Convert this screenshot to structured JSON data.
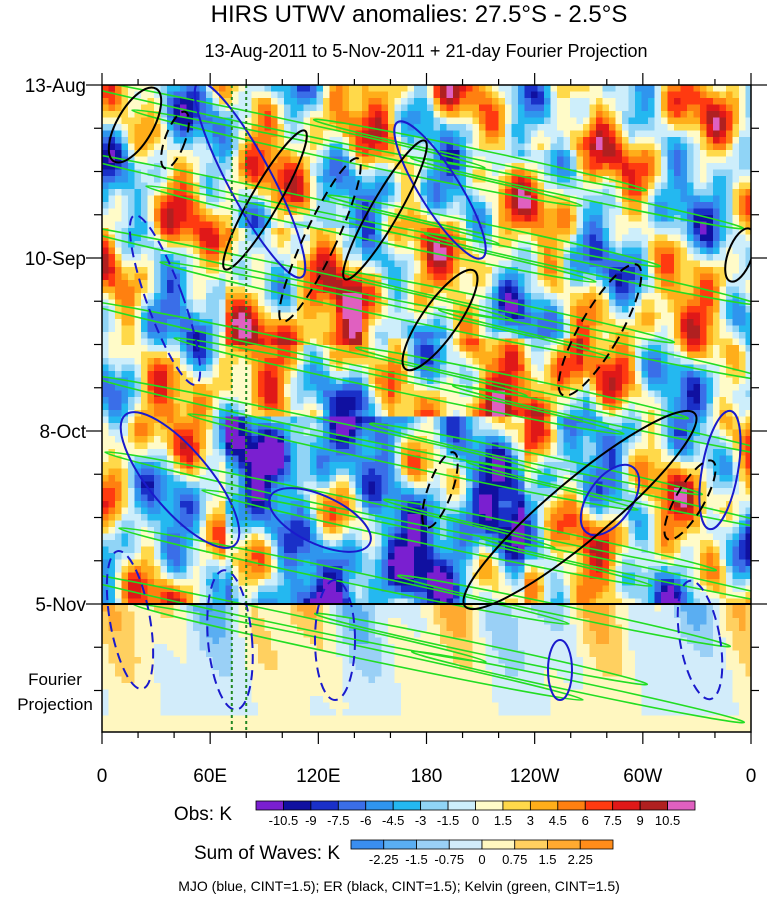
{
  "chart_data": {
    "type": "heatmap",
    "title": "HIRS UTWV anomalies: 27.5°S - 2.5°S",
    "subtitle": "13-Aug-2011 to 5-Nov-2011 + 21-day Fourier Projection",
    "xlabel": "",
    "ylabel": "",
    "x_tick_labels": [
      "0",
      "60E",
      "120E",
      "180",
      "120W",
      "60W",
      "0"
    ],
    "x_range_deg": [
      0,
      360
    ],
    "y_tick_labels": [
      "13-Aug",
      "10-Sep",
      "8-Oct",
      "5-Nov"
    ],
    "y_range_days": [
      0,
      105
    ],
    "projection_label_line1": "Fourier",
    "projection_label_line2": "Projection",
    "obs_label": "Obs: K",
    "obs_levels": [
      "-10.5",
      "-9",
      "-7.5",
      "-6",
      "-4.5",
      "-3",
      "-1.5",
      "0",
      "1.5",
      "3",
      "4.5",
      "6",
      "7.5",
      "9",
      "10.5"
    ],
    "obs_colors": [
      "#7a1fd0",
      "#1010a0",
      "#1a30c8",
      "#3a6ee8",
      "#2f95ee",
      "#24b8f0",
      "#90d4f6",
      "#cdeefb",
      "#fffbc8",
      "#ffd94a",
      "#ffae1a",
      "#ff8010",
      "#ff3a10",
      "#e01818",
      "#b02020",
      "#e060c0"
    ],
    "waves_label": "Sum of Waves: K",
    "waves_levels": [
      "-2.25",
      "-1.5",
      "-0.75",
      "0",
      "0.75",
      "1.5",
      "2.25"
    ],
    "waves_colors": [
      "#3a8ef0",
      "#5aaef2",
      "#9ad0f6",
      "#d2ecfa",
      "#fff7c0",
      "#ffd060",
      "#ffaa30",
      "#ff8c1a"
    ],
    "footer": "MJO (blue, CINT=1.5); ER (black, CINT=1.5); Kelvin (green, CINT=1.5)",
    "contour_colors": {
      "mjo": "#1a1acc",
      "er": "#000000",
      "kelvin": "#22dd22"
    },
    "reference_longitudes": [
      72,
      80
    ],
    "reference_line_color": "#228822"
  }
}
